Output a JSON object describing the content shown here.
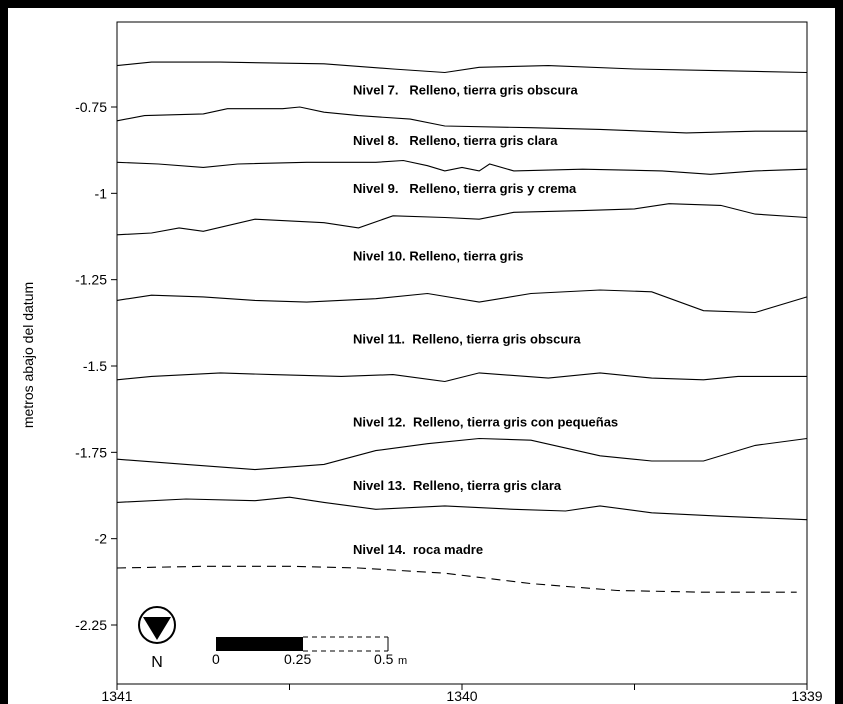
{
  "chart_data": {
    "type": "line",
    "ylabel": "metros abajo del datum",
    "xlim": [
      1341,
      1339
    ],
    "ylim": [
      -2.36,
      -0.58
    ],
    "y_ticks": [
      -0.75,
      -1,
      -1.25,
      -1.5,
      -1.75,
      -2,
      -2.25
    ],
    "y_tick_labels": [
      "-0.75",
      "-1",
      "-1.25",
      "-1.5",
      "-1.75",
      "-2",
      "-2.25"
    ],
    "x_ticks": [
      1341,
      1340.5,
      1340,
      1339.5,
      1339
    ],
    "x_tick_labels": [
      "1341",
      "",
      "1340",
      "",
      "1339"
    ],
    "series": [
      {
        "style": "solid",
        "points": [
          [
            1341,
            -0.63
          ],
          [
            1340.9,
            -0.62
          ],
          [
            1340.7,
            -0.62
          ],
          [
            1340.4,
            -0.625
          ],
          [
            1340.2,
            -0.64
          ],
          [
            1340.05,
            -0.65
          ],
          [
            1339.95,
            -0.635
          ],
          [
            1339.75,
            -0.63
          ],
          [
            1339.5,
            -0.64
          ],
          [
            1339.25,
            -0.645
          ],
          [
            1339,
            -0.65
          ]
        ]
      },
      {
        "style": "solid",
        "points": [
          [
            1341,
            -0.79
          ],
          [
            1340.92,
            -0.775
          ],
          [
            1340.75,
            -0.77
          ],
          [
            1340.68,
            -0.755
          ],
          [
            1340.52,
            -0.755
          ],
          [
            1340.47,
            -0.75
          ],
          [
            1340.4,
            -0.765
          ],
          [
            1340.3,
            -0.775
          ],
          [
            1340.15,
            -0.785
          ],
          [
            1340.05,
            -0.805
          ],
          [
            1339.8,
            -0.81
          ],
          [
            1339.6,
            -0.815
          ],
          [
            1339.35,
            -0.825
          ],
          [
            1339.15,
            -0.82
          ],
          [
            1339,
            -0.82
          ]
        ]
      },
      {
        "style": "solid",
        "points": [
          [
            1341,
            -0.91
          ],
          [
            1340.88,
            -0.915
          ],
          [
            1340.75,
            -0.925
          ],
          [
            1340.65,
            -0.915
          ],
          [
            1340.45,
            -0.91
          ],
          [
            1340.25,
            -0.91
          ],
          [
            1340.17,
            -0.905
          ],
          [
            1340.1,
            -0.92
          ],
          [
            1340.05,
            -0.935
          ],
          [
            1340.0,
            -0.925
          ],
          [
            1339.95,
            -0.935
          ],
          [
            1339.92,
            -0.915
          ],
          [
            1339.85,
            -0.935
          ],
          [
            1339.65,
            -0.93
          ],
          [
            1339.42,
            -0.935
          ],
          [
            1339.28,
            -0.945
          ],
          [
            1339.15,
            -0.935
          ],
          [
            1339,
            -0.93
          ]
        ]
      },
      {
        "style": "solid",
        "points": [
          [
            1341,
            -1.12
          ],
          [
            1340.9,
            -1.115
          ],
          [
            1340.82,
            -1.1
          ],
          [
            1340.75,
            -1.11
          ],
          [
            1340.6,
            -1.075
          ],
          [
            1340.4,
            -1.085
          ],
          [
            1340.3,
            -1.1
          ],
          [
            1340.2,
            -1.065
          ],
          [
            1340.05,
            -1.07
          ],
          [
            1339.95,
            -1.075
          ],
          [
            1339.85,
            -1.055
          ],
          [
            1339.65,
            -1.05
          ],
          [
            1339.5,
            -1.045
          ],
          [
            1339.4,
            -1.03
          ],
          [
            1339.25,
            -1.035
          ],
          [
            1339.15,
            -1.06
          ],
          [
            1339,
            -1.07
          ]
        ]
      },
      {
        "style": "solid",
        "points": [
          [
            1341,
            -1.31
          ],
          [
            1340.9,
            -1.295
          ],
          [
            1340.75,
            -1.3
          ],
          [
            1340.6,
            -1.31
          ],
          [
            1340.45,
            -1.315
          ],
          [
            1340.25,
            -1.305
          ],
          [
            1340.1,
            -1.29
          ],
          [
            1339.95,
            -1.315
          ],
          [
            1339.8,
            -1.29
          ],
          [
            1339.6,
            -1.28
          ],
          [
            1339.45,
            -1.285
          ],
          [
            1339.3,
            -1.34
          ],
          [
            1339.15,
            -1.345
          ],
          [
            1339,
            -1.3
          ]
        ]
      },
      {
        "style": "solid",
        "points": [
          [
            1341,
            -1.54
          ],
          [
            1340.9,
            -1.53
          ],
          [
            1340.7,
            -1.52
          ],
          [
            1340.55,
            -1.525
          ],
          [
            1340.35,
            -1.53
          ],
          [
            1340.2,
            -1.525
          ],
          [
            1340.05,
            -1.545
          ],
          [
            1339.95,
            -1.52
          ],
          [
            1339.75,
            -1.535
          ],
          [
            1339.6,
            -1.52
          ],
          [
            1339.45,
            -1.535
          ],
          [
            1339.3,
            -1.54
          ],
          [
            1339.2,
            -1.53
          ],
          [
            1339,
            -1.53
          ]
        ]
      },
      {
        "style": "solid",
        "points": [
          [
            1341,
            -1.77
          ],
          [
            1340.8,
            -1.785
          ],
          [
            1340.6,
            -1.8
          ],
          [
            1340.4,
            -1.785
          ],
          [
            1340.25,
            -1.745
          ],
          [
            1340.1,
            -1.725
          ],
          [
            1339.95,
            -1.71
          ],
          [
            1339.8,
            -1.715
          ],
          [
            1339.6,
            -1.76
          ],
          [
            1339.45,
            -1.775
          ],
          [
            1339.3,
            -1.775
          ],
          [
            1339.15,
            -1.73
          ],
          [
            1339,
            -1.71
          ]
        ]
      },
      {
        "style": "solid",
        "points": [
          [
            1341,
            -1.895
          ],
          [
            1340.8,
            -1.885
          ],
          [
            1340.6,
            -1.89
          ],
          [
            1340.5,
            -1.88
          ],
          [
            1340.4,
            -1.895
          ],
          [
            1340.25,
            -1.915
          ],
          [
            1340.05,
            -1.905
          ],
          [
            1339.85,
            -1.915
          ],
          [
            1339.7,
            -1.92
          ],
          [
            1339.6,
            -1.905
          ],
          [
            1339.45,
            -1.925
          ],
          [
            1339.25,
            -1.935
          ],
          [
            1339,
            -1.945
          ]
        ]
      },
      {
        "style": "dashed",
        "points": [
          [
            1341,
            -2.085
          ],
          [
            1340.75,
            -2.08
          ],
          [
            1340.5,
            -2.08
          ],
          [
            1340.3,
            -2.085
          ],
          [
            1340.05,
            -2.1
          ],
          [
            1339.8,
            -2.13
          ],
          [
            1339.55,
            -2.15
          ],
          [
            1339.3,
            -2.155
          ],
          [
            1339.03,
            -2.155
          ]
        ]
      }
    ],
    "layer_labels": [
      {
        "text": "Nivel 7.   Relleno, tierra gris obscura",
        "x": 1340.3,
        "y": -0.7
      },
      {
        "text": "Nivel 8.   Relleno, tierra gris clara",
        "x": 1340.3,
        "y": -0.845
      },
      {
        "text": "Nivel 9.   Relleno, tierra gris y crema",
        "x": 1340.3,
        "y": -0.985
      },
      {
        "text": "Nivel 10. Relleno, tierra gris",
        "x": 1340.3,
        "y": -1.18
      },
      {
        "text": "Nivel 11.  Relleno, tierra gris obscura",
        "x": 1340.3,
        "y": -1.42
      },
      {
        "text": "Nivel 12.  Relleno, tierra gris con pequeñas",
        "x": 1340.3,
        "y": -1.66
      },
      {
        "text": "Nivel 13.  Relleno, tierra gris clara",
        "x": 1340.3,
        "y": -1.845
      },
      {
        "text": "Nivel 14.  roca madre",
        "x": 1340.3,
        "y": -2.03
      }
    ],
    "north_arrow_label": "N",
    "scale_bar": {
      "labels": [
        "0",
        "0.25",
        "0.5"
      ],
      "unit": "m"
    }
  }
}
